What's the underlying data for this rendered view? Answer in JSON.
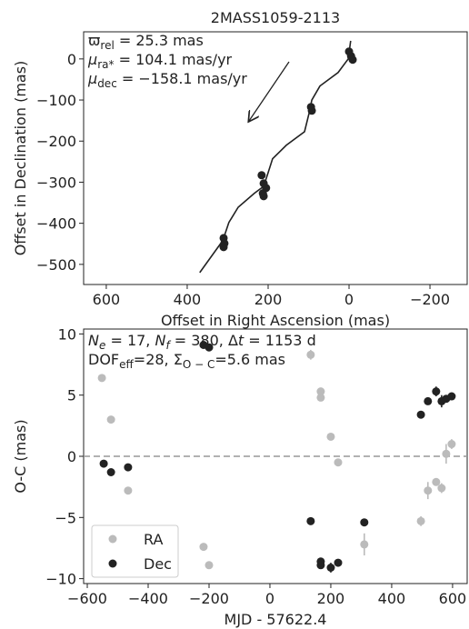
{
  "chart_data": [
    {
      "type": "line",
      "title": "2MASS1059-2113",
      "xlabel": "Offset in Right Ascension (mas)",
      "ylabel": "Offset in Declination (mas)",
      "x": [
        369,
        312,
        297,
        274,
        234,
        211,
        200,
        189,
        155,
        110,
        99,
        92,
        72,
        27,
        2,
        -4
      ],
      "y": [
        -520,
        -442,
        -398,
        -361,
        -327,
        -310,
        -277,
        -243,
        -210,
        -177,
        -133,
        -100,
        -66,
        -33,
        0,
        44
      ],
      "color": "#222222",
      "points_x": [
        0,
        -5,
        -9,
        94,
        92,
        216,
        211,
        205,
        213,
        211,
        310,
        308,
        310
      ],
      "points_y": [
        18,
        7,
        -2,
        -117,
        -126,
        -283,
        -303,
        -314,
        -327,
        -334,
        -436,
        -449,
        -458
      ],
      "xlim": [
        656,
        -292
      ],
      "ylim": [
        -549,
        66
      ],
      "xticks": [
        600,
        400,
        200,
        0,
        {
          "value": -200,
          "label": "−200"
        }
      ],
      "yticks": [
        0,
        {
          "value": -100,
          "label": "−100"
        },
        {
          "value": -200,
          "label": "−200"
        },
        {
          "value": -300,
          "label": "−300"
        },
        {
          "value": -400,
          "label": "−400"
        },
        {
          "value": -500,
          "label": "−500"
        }
      ],
      "annotations": [
        [
          {
            "text": "ϖ"
          },
          {
            "text": "rel",
            "sub": true
          },
          {
            "text": " = 25.3 mas"
          }
        ],
        [
          {
            "text": "μ",
            "italic": true
          },
          {
            "text": "ra*",
            "sub": true
          },
          {
            "text": " = 104.1 mas/yr"
          }
        ],
        [
          {
            "text": "μ",
            "italic": true
          },
          {
            "text": "dec",
            "sub": true
          },
          {
            "text": " = −158.1 mas/yr"
          }
        ]
      ]
    },
    {
      "type": "scatter",
      "xlabel": "MJD - 57622.4",
      "ylabel": "O-C (mas)",
      "xlim": [
        -612,
        648
      ],
      "ylim": [
        -10.4,
        10.4
      ],
      "xticks": [
        {
          "value": -600,
          "label": "−600"
        },
        {
          "value": -400,
          "label": "−400"
        },
        {
          "value": -200,
          "label": "−200"
        },
        0,
        200,
        400,
        600
      ],
      "yticks": [
        10,
        5,
        0,
        {
          "value": -5,
          "label": "−5"
        },
        {
          "value": -10,
          "label": "−10"
        }
      ],
      "hline": 0,
      "legend": "lower left",
      "series": [
        {
          "name": "RA",
          "color": "#bbbbbb",
          "x": [
            -552,
            -522,
            -466,
            -218,
            -200,
            134,
            167,
            167,
            200,
            224,
            310,
            496,
            519,
            546,
            564,
            579,
            597
          ],
          "values": [
            6.4,
            3.0,
            -2.8,
            -7.4,
            -8.9,
            8.3,
            5.3,
            4.8,
            1.6,
            -0.5,
            -7.2,
            -5.3,
            -2.8,
            -2.1,
            -2.6,
            0.2,
            1.0
          ],
          "errors": [
            0.2,
            0.2,
            0.2,
            0.3,
            0.3,
            0.4,
            0.3,
            0.3,
            0.2,
            0.3,
            0.9,
            0.4,
            0.7,
            0.3,
            0.4,
            0.8,
            0.4
          ]
        },
        {
          "name": "Dec",
          "color": "#222222",
          "x": [
            -546,
            -522,
            -466,
            -218,
            -200,
            134,
            167,
            167,
            200,
            224,
            310,
            496,
            519,
            546,
            564,
            579,
            597
          ],
          "values": [
            -0.6,
            -1.3,
            -0.9,
            9.1,
            8.9,
            -5.3,
            -8.6,
            -8.9,
            -9.1,
            -8.7,
            -5.4,
            3.4,
            4.5,
            5.3,
            4.5,
            4.7,
            4.9
          ],
          "errors": [
            0.2,
            0.2,
            0.2,
            0.2,
            0.2,
            0.3,
            0.3,
            0.3,
            0.4,
            0.3,
            0.3,
            0.3,
            0.3,
            0.4,
            0.5,
            0.3,
            0.3
          ]
        }
      ],
      "annotations": [
        [
          {
            "text": "N",
            "italic": true
          },
          {
            "text": "e",
            "sub": true,
            "italic": true
          },
          {
            "text": " = 17, "
          },
          {
            "text": "N",
            "italic": true
          },
          {
            "text": "f",
            "sub": true,
            "italic": true
          },
          {
            "text": " = 380, Δ"
          },
          {
            "text": "t",
            "italic": true
          },
          {
            "text": " = 1153 d"
          }
        ],
        [
          {
            "text": "DOF"
          },
          {
            "text": "eff",
            "sub": true
          },
          {
            "text": "=28, Σ"
          },
          {
            "text": "O − C",
            "sub": true
          },
          {
            "text": "=5.6 mas"
          }
        ]
      ]
    }
  ]
}
